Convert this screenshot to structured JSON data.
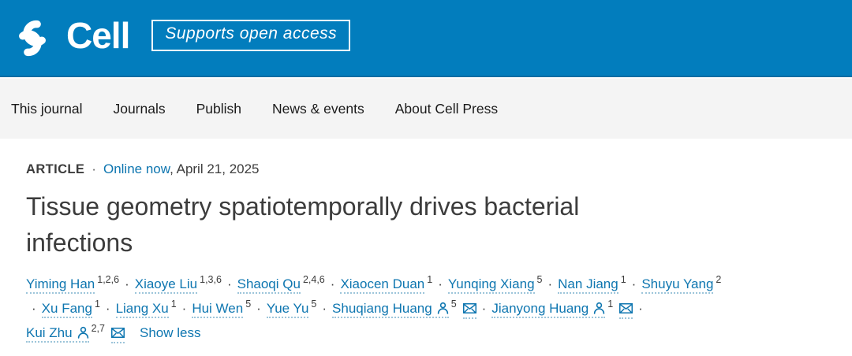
{
  "header": {
    "brand": "Cell",
    "badge": "Supports open access"
  },
  "nav": {
    "items": [
      "This journal",
      "Journals",
      "Publish",
      "News & events",
      "About Cell Press"
    ]
  },
  "article": {
    "eyebrow": {
      "type_label": "ARTICLE",
      "separator": "·",
      "status_link": "Online now",
      "date_suffix": ", April 21, 2025"
    },
    "title": "Tissue geometry spatiotemporally drives bacterial infections",
    "title_lines": [
      "Tissue geometry spatiotemporally drives bacterial",
      "infections"
    ],
    "separator": "·",
    "authors": [
      {
        "name": "Yiming Han",
        "sup": "1,2,6"
      },
      {
        "name": "Xiaoye Liu",
        "sup": "1,3,6"
      },
      {
        "name": "Shaoqi Qu",
        "sup": "2,4,6"
      },
      {
        "name": "Xiaocen Duan",
        "sup": "1"
      },
      {
        "name": "Yunqing Xiang",
        "sup": "5"
      },
      {
        "name": "Nan Jiang",
        "sup": "1"
      },
      {
        "name": "Shuyu Yang",
        "sup": "2"
      },
      {
        "name": "Xu Fang",
        "sup": "1"
      },
      {
        "name": "Liang Xu",
        "sup": "1"
      },
      {
        "name": "Hui Wen",
        "sup": "5"
      },
      {
        "name": "Yue Yu",
        "sup": "5"
      },
      {
        "name": "Shuqiang Huang",
        "sup": "5",
        "person": true,
        "email": true
      },
      {
        "name": "Jianyong Huang",
        "sup": "1",
        "person": true,
        "email": true
      },
      {
        "name": "Kui Zhu",
        "sup": "2,7",
        "person": true,
        "email": true
      }
    ],
    "author_rows": [
      {
        "leading_sep": false,
        "authors": [
          0,
          1,
          2,
          3,
          4,
          5,
          6
        ],
        "trailing_sep": false
      },
      {
        "leading_sep": true,
        "authors": [
          7,
          8,
          9,
          10,
          11,
          12
        ],
        "trailing_sep": true
      },
      {
        "leading_sep": false,
        "authors": [
          13
        ],
        "trailing_sep": false,
        "show_less": true
      }
    ],
    "show_less_label": "Show less"
  },
  "colors": {
    "header_bg": "#027DBD",
    "header_border": "#0C6DA4",
    "nav_bg": "#F4F4F4",
    "link_blue": "#0E76B0",
    "dotted_underline": "#9DC5DA",
    "text_dark": "#3C3C3C"
  }
}
